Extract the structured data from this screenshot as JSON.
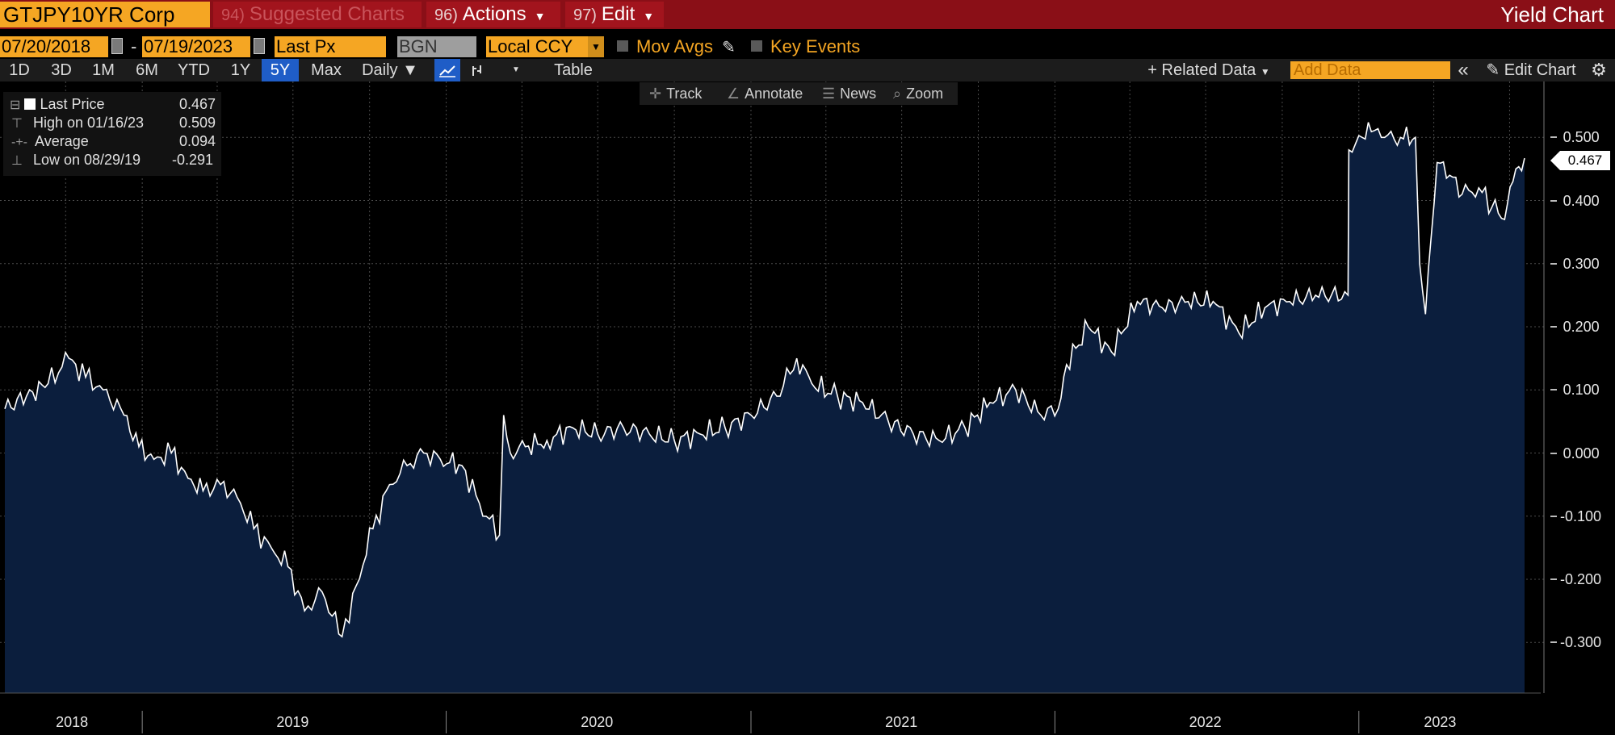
{
  "header": {
    "ticker": "GTJPY10YR Corp",
    "menus": [
      {
        "num": "94)",
        "label": "Suggested Charts"
      },
      {
        "num": "96)",
        "label": "Actions"
      },
      {
        "num": "97)",
        "label": "Edit"
      }
    ],
    "title": "Yield Chart"
  },
  "params": {
    "start_date": "07/20/2018",
    "dash": "-",
    "end_date": "07/19/2023",
    "price_field": "Last Px",
    "source": "BGN",
    "currency": "Local CCY",
    "mov_avgs": "Mov Avgs",
    "key_events": "Key Events"
  },
  "toolbar": {
    "timeframes": [
      "1D",
      "3D",
      "1M",
      "6M",
      "YTD",
      "1Y",
      "5Y",
      "Max"
    ],
    "active_timeframe": "5Y",
    "frequency": "Daily",
    "table": "Table",
    "related_data": "+ Related Data",
    "add_data_placeholder": "Add Data",
    "edit_chart": "Edit Chart"
  },
  "chart_tools": {
    "track": "Track",
    "annotate": "Annotate",
    "news": "News",
    "zoom": "Zoom"
  },
  "legend": {
    "last_label": "Last Price",
    "last_value": "0.467",
    "high_label": "High on 01/16/23",
    "high_value": "0.509",
    "avg_label": "Average",
    "avg_value": "0.094",
    "low_label": "Low on 08/29/19",
    "low_value": "-0.291"
  },
  "colors": {
    "accent": "#f5a623",
    "header": "#8a0f17",
    "area_fill": "#0b1e3d",
    "line": "#ffffff",
    "active": "#1f5dc7"
  },
  "chart_data": {
    "type": "area",
    "x_years": [
      "2018",
      "2019",
      "2020",
      "2021",
      "2022",
      "2023"
    ],
    "y_ticks": [
      "0.500",
      "0.400",
      "0.300",
      "0.200",
      "0.100",
      "0.000",
      "-0.100",
      "-0.200",
      "-0.300"
    ],
    "ylim": [
      -0.36,
      0.56
    ],
    "last_value_tag": "0.467",
    "dates": [
      "2018-07-20",
      "2018-08-15",
      "2018-09-10",
      "2018-10-05",
      "2018-10-25",
      "2018-11-15",
      "2018-12-10",
      "2018-12-28",
      "2019-01-15",
      "2019-02-05",
      "2019-02-25",
      "2019-03-15",
      "2019-04-05",
      "2019-04-25",
      "2019-05-15",
      "2019-06-05",
      "2019-06-25",
      "2019-07-15",
      "2019-08-05",
      "2019-08-29",
      "2019-09-15",
      "2019-10-05",
      "2019-10-25",
      "2019-11-15",
      "2019-12-05",
      "2019-12-25",
      "2020-01-20",
      "2020-02-10",
      "2020-03-05",
      "2020-03-10",
      "2020-03-18",
      "2020-04-05",
      "2020-05-01",
      "2020-06-01",
      "2020-07-01",
      "2020-08-01",
      "2020-09-01",
      "2020-10-01",
      "2020-11-01",
      "2020-12-01",
      "2021-01-01",
      "2021-02-01",
      "2021-02-25",
      "2021-03-15",
      "2021-04-15",
      "2021-05-15",
      "2021-06-15",
      "2021-07-15",
      "2021-08-15",
      "2021-09-15",
      "2021-10-15",
      "2021-11-15",
      "2021-12-15",
      "2022-01-05",
      "2022-01-15",
      "2022-02-10",
      "2022-03-10",
      "2022-04-10",
      "2022-05-10",
      "2022-06-10",
      "2022-07-10",
      "2022-08-10",
      "2022-09-10",
      "2022-10-10",
      "2022-11-10",
      "2022-12-19",
      "2022-12-20",
      "2022-12-28",
      "2023-01-05",
      "2023-01-16",
      "2023-02-01",
      "2023-02-20",
      "2023-03-10",
      "2023-03-15",
      "2023-03-22",
      "2023-04-05",
      "2023-04-20",
      "2023-05-05",
      "2023-05-25",
      "2023-06-10",
      "2023-06-25",
      "2023-07-05",
      "2023-07-19"
    ],
    "values": [
      0.07,
      0.09,
      0.11,
      0.15,
      0.12,
      0.1,
      0.06,
      0.01,
      -0.01,
      0.0,
      -0.04,
      -0.06,
      -0.05,
      -0.07,
      -0.12,
      -0.15,
      -0.18,
      -0.25,
      -0.22,
      -0.291,
      -0.21,
      -0.12,
      -0.05,
      -0.02,
      0.0,
      -0.01,
      -0.02,
      -0.08,
      -0.13,
      0.06,
      0.0,
      0.01,
      0.02,
      0.04,
      0.03,
      0.04,
      0.03,
      0.02,
      0.03,
      0.04,
      0.06,
      0.09,
      0.15,
      0.11,
      0.09,
      0.08,
      0.05,
      0.03,
      0.02,
      0.04,
      0.08,
      0.1,
      0.06,
      0.07,
      0.14,
      0.2,
      0.16,
      0.24,
      0.23,
      0.24,
      0.24,
      0.19,
      0.23,
      0.24,
      0.25,
      0.25,
      0.48,
      0.49,
      0.5,
      0.509,
      0.5,
      0.5,
      0.5,
      0.3,
      0.22,
      0.46,
      0.44,
      0.41,
      0.42,
      0.39,
      0.37,
      0.43,
      0.467
    ]
  }
}
